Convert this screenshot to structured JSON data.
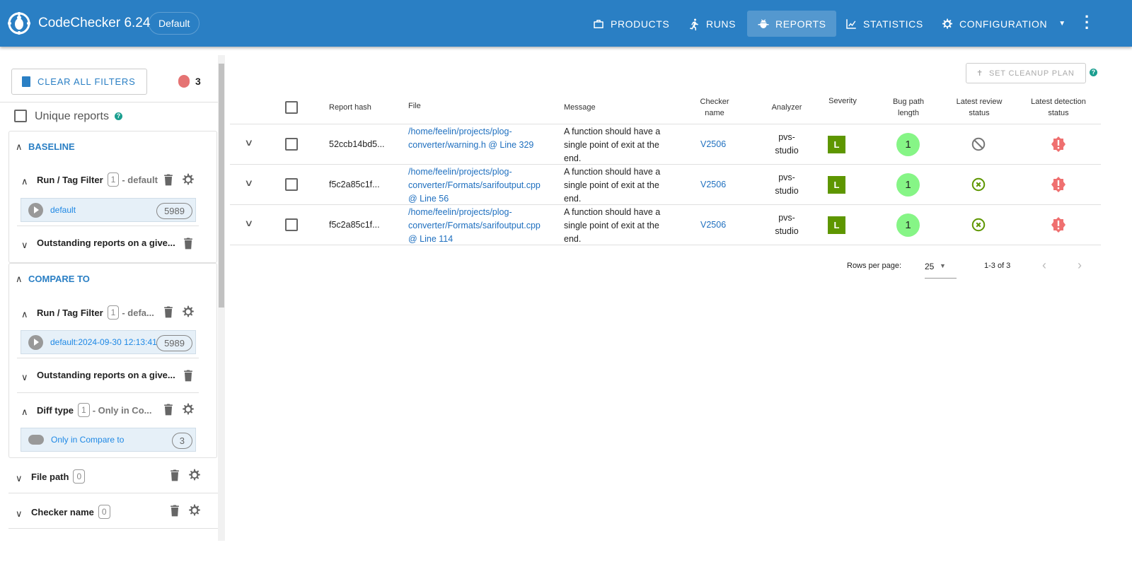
{
  "header": {
    "title": "CodeChecker 6.24",
    "product": "Default",
    "nav": [
      {
        "label": "Products",
        "icon": "briefcase-icon"
      },
      {
        "label": "Runs",
        "icon": "runner-icon"
      },
      {
        "label": "Reports",
        "icon": "bug-icon",
        "active": true
      },
      {
        "label": "Statistics",
        "icon": "chart-line-icon"
      },
      {
        "label": "Configuration",
        "icon": "gear-icon"
      }
    ],
    "accent": "#2a7fc4"
  },
  "sidebar": {
    "clear_label": "CLEAR ALL FILTERS",
    "report_count": "3",
    "unique_label": "Unique reports",
    "baseline": {
      "title": "BASELINE",
      "run_filter": {
        "label": "Run / Tag Filter",
        "count": "1",
        "summary": "- default",
        "item": "default",
        "item_count": "5989"
      },
      "outstanding": {
        "label": "Outstanding reports on a give..."
      }
    },
    "compare": {
      "title": "COMPARE TO",
      "run_filter": {
        "label": "Run / Tag Filter",
        "count": "1",
        "summary": "- defa...",
        "item": "default:2024-09-30 12:13:41",
        "item_count": "5989"
      },
      "outstanding": {
        "label": "Outstanding reports on a give..."
      },
      "diff": {
        "label": "Diff type",
        "count": "1",
        "summary": "- Only in Co...",
        "item": "Only in Compare to",
        "item_count": "3"
      }
    },
    "filters": [
      {
        "label": "File path",
        "count": "0"
      },
      {
        "label": "Checker name",
        "count": "0"
      }
    ]
  },
  "main": {
    "cleanup_label": "SET CLEANUP PLAN",
    "columns": [
      "Report hash",
      "File",
      "Message",
      "Checker name",
      "Analyzer",
      "Severity",
      "Bug path length",
      "Latest review status",
      "Latest detection status"
    ],
    "rows": [
      {
        "hash": "52ccb14bd5...",
        "file": "/home/feelin/projects/plog-converter/warning.h @ Line 329",
        "message": "A function should have a single point of exit at the end.",
        "checker": "V2506",
        "analyzer": "pvs-studio",
        "severity": "L",
        "bug_path": "1",
        "review": "unreviewed",
        "detection": "new"
      },
      {
        "hash": "f5c2a85c1f...",
        "file": "/home/feelin/projects/plog-converter/Formats/sarifoutput.cpp @ Line 56",
        "message": "A function should have a single point of exit at the end.",
        "checker": "V2506",
        "analyzer": "pvs-studio",
        "severity": "L",
        "bug_path": "1",
        "review": "false-positive",
        "detection": "new"
      },
      {
        "hash": "f5c2a85c1f...",
        "file": "/home/feelin/projects/plog-converter/Formats/sarifoutput.cpp @ Line 114",
        "message": "A function should have a single point of exit at the end.",
        "checker": "V2506",
        "analyzer": "pvs-studio",
        "severity": "L",
        "bug_path": "1",
        "review": "false-positive",
        "detection": "new"
      }
    ],
    "pagination": {
      "rows_label": "Rows per page:",
      "rows_value": "25",
      "range": "1-3 of 3"
    }
  }
}
